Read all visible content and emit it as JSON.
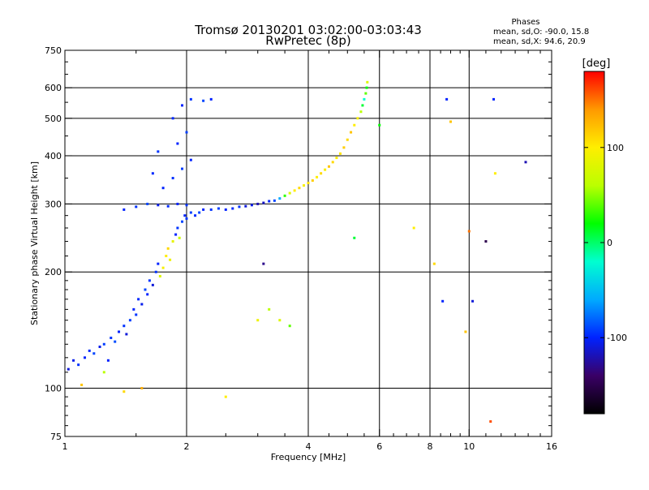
{
  "chart_data": {
    "type": "scatter",
    "title": "Tromsø 20130201 03:02:00-03:03:43",
    "subtitle": "RwPretec (8p)",
    "info_title": "Phases",
    "info_lines": [
      "mean, sd,O: -90.0, 15.8",
      "mean, sd,X:  94.6, 20.9"
    ],
    "xlabel": "Frequency [MHz]",
    "ylabel": "Stationary phase Virtual Height [km]",
    "x_scale": "log",
    "y_scale": "log",
    "xlim": [
      1,
      16
    ],
    "ylim": [
      75,
      750
    ],
    "x_ticks": [
      1,
      2,
      4,
      6,
      8,
      10,
      16
    ],
    "x_tick_labels": [
      "1",
      "2",
      "4",
      "6",
      "8",
      "10",
      "16"
    ],
    "x_minor_ticks": [
      1.5,
      2.5,
      3,
      3.5,
      4.5,
      5,
      5.5,
      6.5,
      7,
      7.5,
      8.5,
      9,
      9.5,
      11,
      12,
      13,
      14,
      15
    ],
    "y_ticks": [
      75,
      100,
      200,
      300,
      400,
      500,
      600,
      750
    ],
    "y_tick_labels": [
      "75",
      "100",
      "200",
      "300",
      "400",
      "500",
      "600",
      "750"
    ],
    "y_minor_ticks": [
      80,
      85,
      90,
      95,
      110,
      120,
      130,
      140,
      150,
      160,
      170,
      180,
      190,
      220,
      240,
      260,
      280,
      350,
      450,
      550,
      650,
      700
    ],
    "grid_x": [
      2,
      4,
      6,
      8,
      10
    ],
    "grid_y": [
      100,
      200,
      300,
      400,
      500,
      600
    ],
    "colorbar": {
      "label": "[deg]",
      "range": [
        -180,
        180
      ],
      "tick_values": [
        100,
        0,
        -100
      ],
      "tick_labels": [
        "100",
        "0",
        "-100"
      ],
      "colors": [
        "#000000",
        "#3a0066",
        "#0022ff",
        "#00aaff",
        "#00ffd0",
        "#00ff00",
        "#bbff00",
        "#ffee00",
        "#ff9900",
        "#ff0000"
      ]
    },
    "series": [
      {
        "colors_hint": "phase-mixed",
        "points": [
          [
            1.02,
            112,
            -110
          ],
          [
            1.05,
            118,
            -105
          ],
          [
            1.08,
            115,
            -95
          ],
          [
            1.12,
            120,
            -100
          ],
          [
            1.15,
            125,
            -98
          ],
          [
            1.18,
            123,
            -90
          ],
          [
            1.22,
            128,
            -105
          ],
          [
            1.25,
            130,
            -92
          ],
          [
            1.28,
            118,
            -100
          ],
          [
            1.3,
            135,
            -95
          ],
          [
            1.33,
            132,
            -88
          ],
          [
            1.36,
            140,
            -100
          ],
          [
            1.4,
            145,
            -96
          ],
          [
            1.42,
            138,
            -110
          ],
          [
            1.45,
            150,
            -92
          ],
          [
            1.48,
            160,
            -100
          ],
          [
            1.5,
            155,
            -95
          ],
          [
            1.52,
            170,
            -98
          ],
          [
            1.55,
            165,
            -105
          ],
          [
            1.58,
            180,
            -90
          ],
          [
            1.6,
            175,
            -100
          ],
          [
            1.62,
            190,
            -95
          ],
          [
            1.65,
            185,
            -110
          ],
          [
            1.68,
            200,
            -96
          ],
          [
            1.7,
            210,
            -100
          ],
          [
            1.72,
            195,
            80
          ],
          [
            1.75,
            205,
            95
          ],
          [
            1.78,
            220,
            100
          ],
          [
            1.8,
            230,
            110
          ],
          [
            1.82,
            215,
            90
          ],
          [
            1.85,
            240,
            85
          ],
          [
            1.88,
            250,
            -100
          ],
          [
            1.9,
            260,
            -95
          ],
          [
            1.92,
            245,
            70
          ],
          [
            1.95,
            270,
            -90
          ],
          [
            1.98,
            280,
            -100
          ],
          [
            2.0,
            275,
            -95
          ],
          [
            2.05,
            285,
            -92
          ],
          [
            2.1,
            280,
            -98
          ],
          [
            2.15,
            285,
            -90
          ],
          [
            2.2,
            290,
            -100
          ],
          [
            2.3,
            290,
            -95
          ],
          [
            2.4,
            292,
            -92
          ],
          [
            2.5,
            290,
            -100
          ],
          [
            2.6,
            292,
            -98
          ],
          [
            2.7,
            295,
            -95
          ],
          [
            2.8,
            296,
            -110
          ],
          [
            2.9,
            298,
            -105
          ],
          [
            3.0,
            300,
            -120
          ],
          [
            3.1,
            302,
            -115
          ],
          [
            3.2,
            305,
            -100
          ],
          [
            3.3,
            306,
            -90
          ],
          [
            3.4,
            310,
            -60
          ],
          [
            3.5,
            315,
            30
          ],
          [
            3.6,
            320,
            80
          ],
          [
            3.7,
            325,
            100
          ],
          [
            3.8,
            330,
            110
          ],
          [
            3.9,
            335,
            95
          ],
          [
            4.0,
            340,
            105
          ],
          [
            4.1,
            345,
            115
          ],
          [
            4.2,
            352,
            100
          ],
          [
            4.3,
            360,
            110
          ],
          [
            4.4,
            368,
            95
          ],
          [
            4.5,
            375,
            120
          ],
          [
            4.6,
            385,
            110
          ],
          [
            4.7,
            395,
            100
          ],
          [
            4.8,
            405,
            105
          ],
          [
            4.9,
            420,
            115
          ],
          [
            5.0,
            440,
            110
          ],
          [
            5.1,
            460,
            120
          ],
          [
            5.2,
            480,
            100
          ],
          [
            5.3,
            500,
            95
          ],
          [
            5.4,
            520,
            60
          ],
          [
            5.45,
            540,
            10
          ],
          [
            5.5,
            560,
            -20
          ],
          [
            5.55,
            580,
            40
          ],
          [
            5.58,
            600,
            20
          ],
          [
            5.6,
            620,
            80
          ],
          [
            1.4,
            290,
            -100
          ],
          [
            1.5,
            295,
            -95
          ],
          [
            1.6,
            300,
            -90
          ],
          [
            1.7,
            298,
            -105
          ],
          [
            1.8,
            296,
            -98
          ],
          [
            1.9,
            300,
            -100
          ],
          [
            2.0,
            298,
            -95
          ],
          [
            1.75,
            330,
            -100
          ],
          [
            1.85,
            350,
            -96
          ],
          [
            1.95,
            370,
            -92
          ],
          [
            2.05,
            390,
            -100
          ],
          [
            1.65,
            360,
            -98
          ],
          [
            1.7,
            410,
            -95
          ],
          [
            1.9,
            430,
            -100
          ],
          [
            2.0,
            460,
            -92
          ],
          [
            1.85,
            500,
            -98
          ],
          [
            1.95,
            540,
            -100
          ],
          [
            2.05,
            560,
            -95
          ],
          [
            2.2,
            555,
            -90
          ],
          [
            2.3,
            560,
            -100
          ],
          [
            1.1,
            102,
            120
          ],
          [
            1.25,
            110,
            60
          ],
          [
            1.4,
            98,
            110
          ],
          [
            1.55,
            100,
            130
          ],
          [
            2.5,
            95,
            100
          ],
          [
            3.0,
            150,
            90
          ],
          [
            3.2,
            160,
            60
          ],
          [
            3.1,
            210,
            -130
          ],
          [
            3.4,
            150,
            80
          ],
          [
            3.6,
            145,
            40
          ],
          [
            5.2,
            245,
            10
          ],
          [
            6.0,
            480,
            20
          ],
          [
            7.3,
            260,
            100
          ],
          [
            8.2,
            210,
            110
          ],
          [
            8.8,
            560,
            -100
          ],
          [
            9.0,
            490,
            120
          ],
          [
            9.8,
            140,
            120
          ],
          [
            10.2,
            168,
            -110
          ],
          [
            11.0,
            240,
            -150
          ],
          [
            11.3,
            82,
            160
          ],
          [
            11.5,
            560,
            -100
          ],
          [
            11.6,
            360,
            100
          ],
          [
            13.8,
            385,
            -120
          ],
          [
            8.6,
            168,
            -100
          ],
          [
            10.0,
            255,
            150
          ]
        ]
      }
    ]
  }
}
